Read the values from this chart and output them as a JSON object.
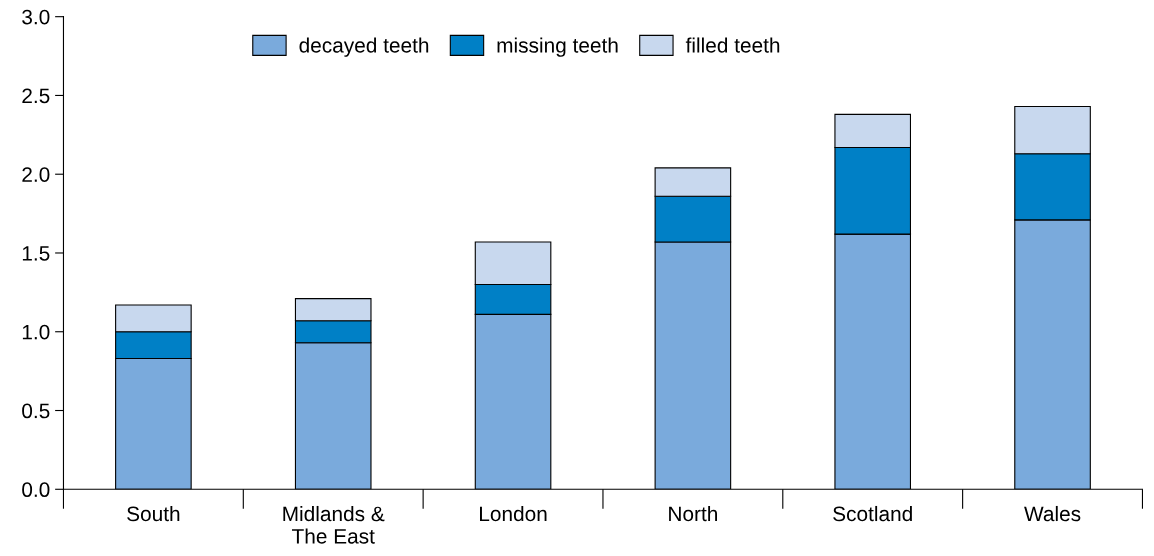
{
  "chart_data": {
    "type": "bar",
    "stacked": true,
    "categories": [
      "South",
      "Midlands &\nThe East",
      "London",
      "North",
      "Scotland",
      "Wales"
    ],
    "series": [
      {
        "name": "decayed teeth",
        "color": "#7aaadc",
        "values": [
          0.83,
          0.93,
          1.11,
          1.57,
          1.62,
          1.71
        ]
      },
      {
        "name": "missing teeth",
        "color": "#0080c6",
        "values": [
          0.17,
          0.14,
          0.19,
          0.29,
          0.55,
          0.42
        ]
      },
      {
        "name": "filled teeth",
        "color": "#c8d8ee",
        "values": [
          0.17,
          0.14,
          0.27,
          0.18,
          0.21,
          0.3
        ]
      }
    ],
    "ylim": [
      0,
      3.0
    ],
    "yticks": [
      {
        "value": 0,
        "label": "0.0"
      },
      {
        "value": 0.5,
        "label": "0.5"
      },
      {
        "value": 1.0,
        "label": "1.0"
      },
      {
        "value": 1.5,
        "label": "1.5"
      },
      {
        "value": 2.0,
        "label": "2.0"
      },
      {
        "value": 2.5,
        "label": "2.5"
      },
      {
        "value": 3.0,
        "label": "3.0"
      }
    ],
    "grid": false,
    "legend": "top"
  }
}
